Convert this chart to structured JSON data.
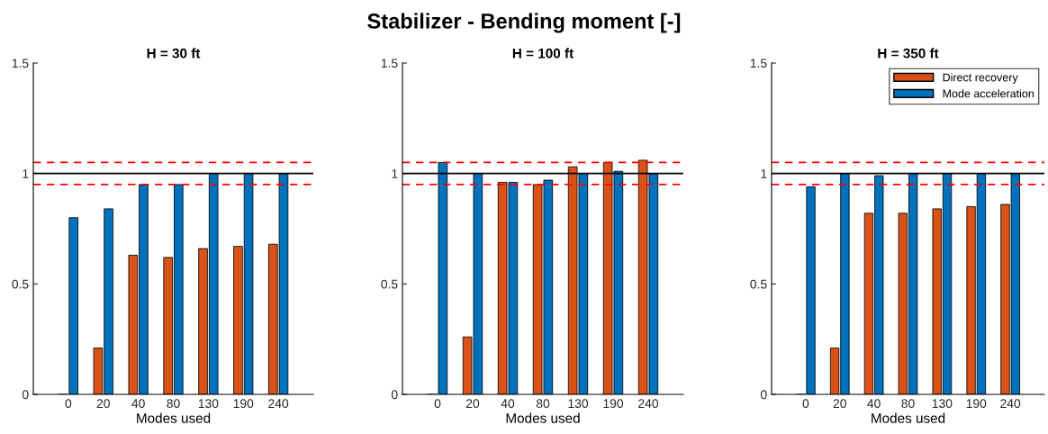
{
  "chart_data": [
    {
      "type": "bar",
      "title": "H = 30 ft",
      "xlabel": "Modes used",
      "annotations": [
        "Stabilizer - Bending moment [-]"
      ],
      "categories": [
        "0",
        "20",
        "40",
        "80",
        "130",
        "190",
        "240"
      ],
      "series": [
        {
          "color": "#d95319",
          "values": [
            0,
            0.21,
            0.63,
            0.62,
            0.66,
            0.67,
            0.68
          ]
        },
        {
          "color": "#0072bd",
          "values": [
            0.8,
            0.84,
            0.95,
            0.95,
            1.0,
            1.0,
            1.0
          ]
        }
      ],
      "ylim": [
        0,
        1.5
      ],
      "yticks": [
        0,
        0.5,
        1,
        1.5
      ],
      "grid": false,
      "legend": false,
      "ref_lines": [
        {
          "axis": "y",
          "value": 1.05,
          "color": "#ff0000",
          "line_style": "dashed"
        },
        {
          "axis": "y",
          "value": 1,
          "color": "#000000",
          "line_style": "solid"
        },
        {
          "axis": "y",
          "value": 0.95,
          "color": "#ff0000",
          "line_style": "dashed"
        }
      ]
    },
    {
      "type": "bar",
      "title": "H = 100 ft",
      "xlabel": "Modes used",
      "categories": [
        "0",
        "20",
        "40",
        "80",
        "130",
        "190",
        "240"
      ],
      "series": [
        {
          "color": "#d95319",
          "values": [
            0,
            0.26,
            0.96,
            0.95,
            1.03,
            1.05,
            1.06
          ]
        },
        {
          "color": "#0072bd",
          "values": [
            1.05,
            1.0,
            0.96,
            0.97,
            1.0,
            1.01,
            1.0
          ]
        }
      ],
      "ylim": [
        0,
        1.5
      ],
      "yticks": [
        0,
        0.5,
        1,
        1.5
      ],
      "grid": false,
      "legend": false,
      "ref_lines": [
        {
          "axis": "y",
          "value": 1.05,
          "color": "#ff0000",
          "line_style": "dashed"
        },
        {
          "axis": "y",
          "value": 1,
          "color": "#000000",
          "line_style": "solid"
        },
        {
          "axis": "y",
          "value": 0.95,
          "color": "#ff0000",
          "line_style": "dashed"
        }
      ]
    },
    {
      "type": "bar",
      "title": "H = 350 ft",
      "xlabel": "Modes used",
      "categories": [
        "0",
        "20",
        "40",
        "80",
        "130",
        "190",
        "240"
      ],
      "series": [
        {
          "name": "Direct recovery",
          "color": "#d95319",
          "values": [
            0,
            0.21,
            0.82,
            0.82,
            0.84,
            0.85,
            0.86
          ]
        },
        {
          "name": "Mode acceleration",
          "color": "#0072bd",
          "values": [
            0.94,
            1.0,
            0.99,
            1.0,
            1.0,
            1.0,
            1.0
          ]
        }
      ],
      "ylim": [
        0,
        1.5
      ],
      "yticks": [
        0,
        0.5,
        1,
        1.5
      ],
      "grid": false,
      "legend": "top right",
      "ref_lines": [
        {
          "axis": "y",
          "value": 1.05,
          "color": "#ff0000",
          "line_style": "dashed"
        },
        {
          "axis": "y",
          "value": 1,
          "color": "#000000",
          "line_style": "solid"
        },
        {
          "axis": "y",
          "value": 0.95,
          "color": "#ff0000",
          "line_style": "dashed"
        }
      ]
    }
  ]
}
